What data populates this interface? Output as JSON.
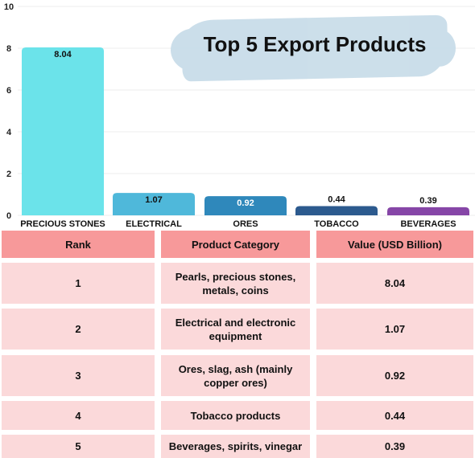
{
  "chart_data": {
    "type": "bar",
    "title": "Top 5 Export Products",
    "categories": [
      "PRECIOUS STONES",
      "ELECTRICAL",
      "ORES",
      "TOBACCO",
      "BEVERAGES"
    ],
    "values": [
      8.04,
      1.07,
      0.92,
      0.44,
      0.39
    ],
    "value_labels": [
      "8.04",
      "1.07",
      "0.92",
      "0.44",
      "0.39"
    ],
    "colors": [
      "#6be3ea",
      "#4fb8da",
      "#2f88bb",
      "#2c5a8e",
      "#8646a7"
    ],
    "label_colors": [
      "#111111",
      "#111111",
      "#ffffff",
      "#111111",
      "#111111"
    ],
    "yticks": [
      0,
      2,
      4,
      6,
      8,
      10
    ],
    "ylim": [
      0,
      10
    ],
    "grid": true,
    "xlabel": "",
    "ylabel": ""
  },
  "table": {
    "headers": [
      "Rank",
      "Product Category",
      "Value (USD Billion)"
    ],
    "rows": [
      {
        "rank": "1",
        "category": "Pearls, precious stones, metals, coins",
        "value": "8.04"
      },
      {
        "rank": "2",
        "category": "Electrical and electronic equipment",
        "value": "1.07"
      },
      {
        "rank": "3",
        "category": "Ores, slag, ash (mainly copper ores)",
        "value": "0.92"
      },
      {
        "rank": "4",
        "category": "Tobacco products",
        "value": "0.44"
      },
      {
        "rank": "5",
        "category": "Beverages, spirits, vinegar",
        "value": "0.39"
      }
    ]
  }
}
